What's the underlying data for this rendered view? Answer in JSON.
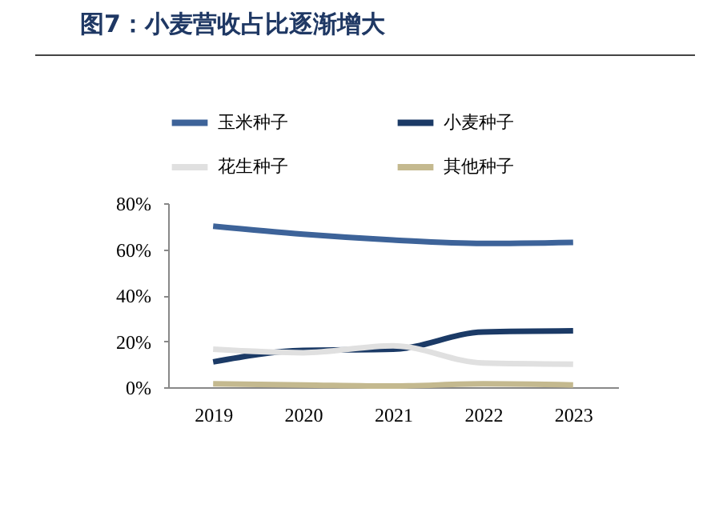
{
  "chart_data": {
    "type": "line",
    "title": "图7：小麦营收占比逐渐增大",
    "categories": [
      "2019",
      "2020",
      "2021",
      "2022",
      "2023"
    ],
    "series": [
      {
        "name": "玉米种子",
        "color": "#3d6399",
        "values": [
          70,
          66.5,
          64,
          62.5,
          63
        ]
      },
      {
        "name": "小麦种子",
        "color": "#1b3a66",
        "values": [
          11,
          16,
          16.5,
          24,
          24.5
        ]
      },
      {
        "name": "花生种子",
        "color": "#e0e0e0",
        "values": [
          16.5,
          15,
          18,
          10.5,
          10
        ]
      },
      {
        "name": "其他种子",
        "color": "#c4b98f",
        "values": [
          1.5,
          1,
          0.5,
          1.5,
          1
        ]
      }
    ],
    "ylim": [
      0,
      80
    ],
    "yticks": [
      {
        "value": 0,
        "label": "0%"
      },
      {
        "value": 20,
        "label": "20%"
      },
      {
        "value": 40,
        "label": "40%"
      },
      {
        "value": 60,
        "label": "60%"
      },
      {
        "value": 80,
        "label": "80%"
      }
    ],
    "grid": false,
    "legend": "top",
    "marker": "none",
    "line_style": "solid"
  }
}
